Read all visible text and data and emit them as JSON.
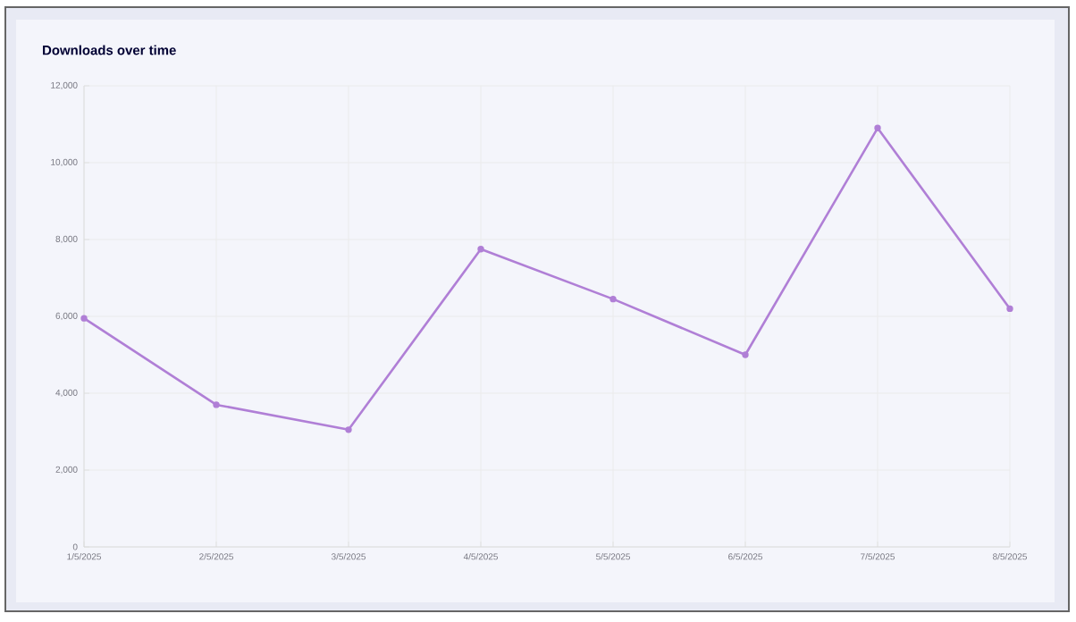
{
  "chart_data": {
    "type": "line",
    "title": "Downloads over time",
    "categories": [
      "1/5/2025",
      "2/5/2025",
      "3/5/2025",
      "4/5/2025",
      "5/5/2025",
      "6/5/2025",
      "7/5/2025",
      "8/5/2025"
    ],
    "series": [
      {
        "color": "#b07fd6",
        "values": [
          5950,
          3700,
          3050,
          7750,
          6450,
          5000,
          10900,
          6200
        ]
      }
    ],
    "ylim": [
      0,
      12000
    ],
    "yticks": [
      0,
      {
        "value": 2000,
        "label": "2,000"
      },
      {
        "value": 4000,
        "label": "4,000"
      },
      {
        "value": 6000,
        "label": "6,000"
      },
      {
        "value": 8000,
        "label": "8,000"
      },
      {
        "value": 10000,
        "label": "10,000"
      },
      {
        "value": 12000,
        "label": "12,000"
      }
    ],
    "grid": true,
    "marker": "circle",
    "line_style": "solid"
  }
}
